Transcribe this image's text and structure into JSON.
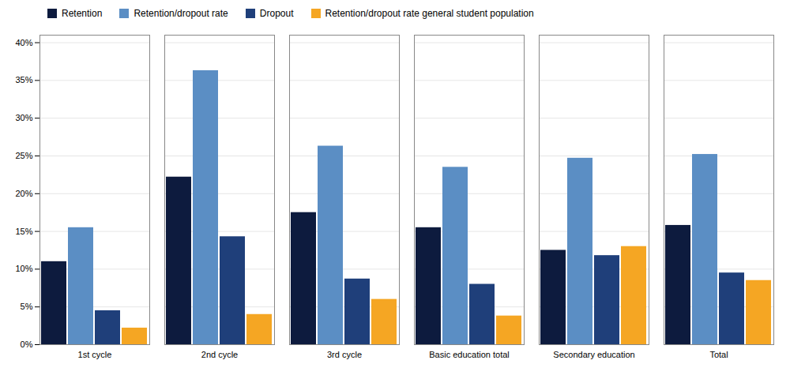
{
  "chart_data": {
    "type": "bar",
    "categories": [
      "1st cycle",
      "2nd cycle",
      "3rd cycle",
      "Basic education total",
      "Secondary education",
      "Total"
    ],
    "series": [
      {
        "name": "Retention",
        "color": "#0d1b3e",
        "values": [
          0.11,
          0.222,
          0.175,
          0.155,
          0.125,
          0.158
        ]
      },
      {
        "name": "Retention/dropout rate",
        "color": "#5b8ec4",
        "values": [
          0.155,
          0.363,
          0.263,
          0.235,
          0.247,
          0.252
        ]
      },
      {
        "name": "Dropout",
        "color": "#1f3f7a",
        "values": [
          0.045,
          0.143,
          0.087,
          0.08,
          0.118,
          0.095
        ]
      },
      {
        "name": "Retention/dropout rate general student population",
        "color": "#f5a623",
        "values": [
          0.022,
          0.04,
          0.06,
          0.038,
          0.13,
          0.085
        ]
      }
    ],
    "ylim": [
      0,
      0.41
    ],
    "yticks": [
      {
        "value": 0,
        "label": "0%"
      },
      {
        "value": 0.05,
        "label": "5%"
      },
      {
        "value": 0.1,
        "label": "10%"
      },
      {
        "value": 0.15,
        "label": "15%"
      },
      {
        "value": 0.2,
        "label": "20%"
      },
      {
        "value": 0.25,
        "label": "25%"
      },
      {
        "value": 0.3,
        "label": "30%"
      },
      {
        "value": 0.35,
        "label": "35%"
      },
      {
        "value": 0.4,
        "label": "40%"
      }
    ],
    "grid": true,
    "legend": "top"
  }
}
